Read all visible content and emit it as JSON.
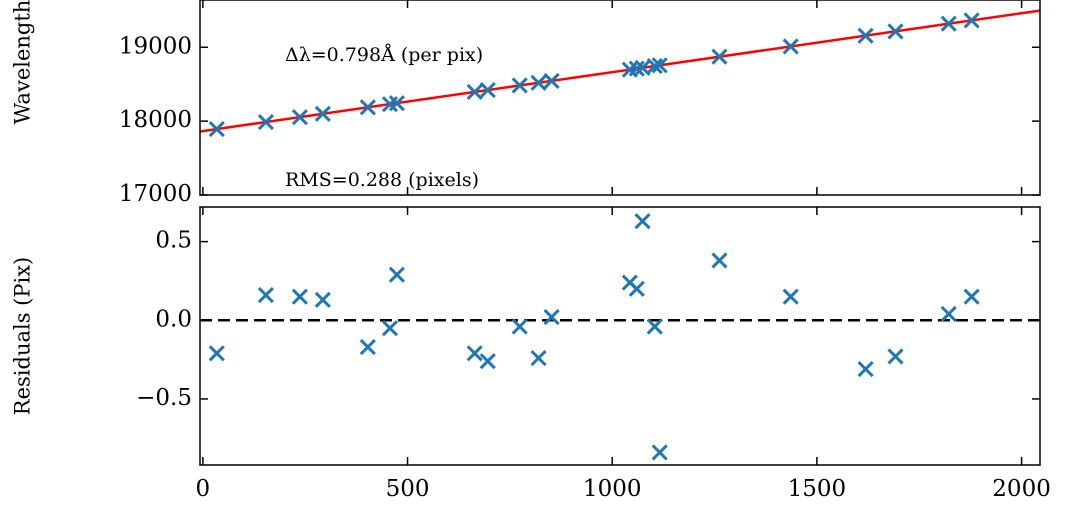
{
  "chart_data": [
    {
      "type": "scatter",
      "ylabel": "Wavelength",
      "annotations": [
        "Δλ=0.798Å (per pix)",
        "RMS=0.288 (pixels)"
      ],
      "x": [
        34,
        154,
        237,
        293,
        403,
        457,
        474,
        664,
        696,
        774,
        820,
        852,
        1043,
        1060,
        1074,
        1104,
        1116,
        1262,
        1436,
        1619,
        1692,
        1822,
        1878
      ],
      "values": [
        17892,
        17988,
        18054,
        18099,
        18187,
        18230,
        18243,
        18395,
        18420,
        18483,
        18519,
        18545,
        18697,
        18711,
        18722,
        18746,
        18756,
        18872,
        19011,
        19157,
        19215,
        19319,
        19364
      ],
      "color": "#1f77b4",
      "fit": {
        "x": [
          -7,
          2045
        ],
        "values": [
          17860,
          19497
        ],
        "color": "#ff0000"
      },
      "xlim": [
        -7,
        2045
      ],
      "ylim": [
        17000,
        19640
      ],
      "yticks": [
        17000,
        18000,
        19000
      ]
    },
    {
      "type": "scatter",
      "ylabel": "Residuals (Pix)",
      "x": [
        34,
        154,
        237,
        293,
        403,
        457,
        474,
        664,
        696,
        774,
        820,
        852,
        1043,
        1060,
        1074,
        1104,
        1116,
        1262,
        1436,
        1619,
        1692,
        1822,
        1878
      ],
      "values": [
        -0.21,
        0.16,
        0.15,
        0.13,
        -0.17,
        -0.05,
        0.29,
        -0.21,
        -0.26,
        -0.04,
        -0.24,
        0.02,
        0.24,
        0.2,
        0.63,
        -0.04,
        -0.84,
        0.38,
        0.15,
        -0.31,
        -0.23,
        0.04,
        0.15
      ],
      "color": "#1f77b4",
      "hline": {
        "value": 0,
        "color": "#000000",
        "dashed": true
      },
      "xlim": [
        -7,
        2045
      ],
      "ylim": [
        -0.92,
        0.72
      ],
      "xticks": [
        0,
        500,
        1000,
        1500,
        2000
      ],
      "yticks": [
        {
          "value": -0.5,
          "label": "−0.5"
        },
        {
          "value": 0,
          "label": "0.0"
        },
        {
          "value": 0.5,
          "label": "0.5"
        }
      ]
    }
  ]
}
